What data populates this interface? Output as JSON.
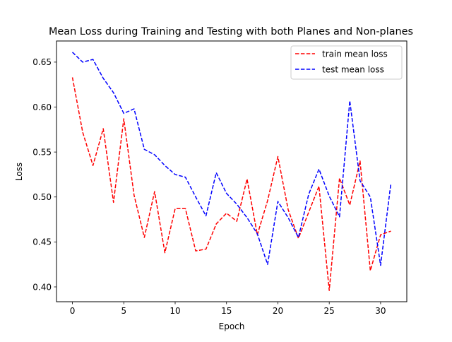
{
  "chart_data": {
    "type": "line",
    "title": "Mean Loss during Training and Testing with both Planes and Non-planes",
    "xlabel": "Epoch",
    "ylabel": "Loss",
    "xlim": [
      -1.55,
      32.55
    ],
    "ylim": [
      0.3835,
      0.6735
    ],
    "x_ticks": [
      0,
      5,
      10,
      15,
      20,
      25,
      30
    ],
    "y_ticks": [
      0.4,
      0.45,
      0.5,
      0.55,
      0.6,
      0.65
    ],
    "x_tick_labels": [
      "0",
      "5",
      "10",
      "15",
      "20",
      "25",
      "30"
    ],
    "y_tick_labels": [
      "0.40",
      "0.45",
      "0.50",
      "0.55",
      "0.60",
      "0.65"
    ],
    "grid": false,
    "legend_position": "top-right",
    "x": [
      0,
      1,
      2,
      3,
      4,
      5,
      6,
      7,
      8,
      9,
      10,
      11,
      12,
      13,
      14,
      15,
      16,
      17,
      18,
      19,
      20,
      21,
      22,
      23,
      24,
      25,
      26,
      27,
      28,
      29,
      30,
      31
    ],
    "series": [
      {
        "name": "train mean loss",
        "color": "#ff0000",
        "line_style": "dashed",
        "values": [
          0.633,
          0.572,
          0.535,
          0.576,
          0.494,
          0.587,
          0.502,
          0.455,
          0.506,
          0.438,
          0.487,
          0.487,
          0.44,
          0.442,
          0.47,
          0.482,
          0.473,
          0.52,
          0.458,
          0.496,
          0.545,
          0.486,
          0.454,
          0.483,
          0.512,
          0.396,
          0.521,
          0.491,
          0.54,
          0.418,
          0.458,
          0.462
        ]
      },
      {
        "name": "test mean loss",
        "color": "#0000ff",
        "line_style": "dashed",
        "values": [
          0.661,
          0.65,
          0.653,
          0.632,
          0.616,
          0.593,
          0.598,
          0.553,
          0.547,
          0.535,
          0.525,
          0.522,
          0.5,
          0.479,
          0.527,
          0.504,
          0.492,
          0.477,
          0.459,
          0.425,
          0.495,
          0.477,
          0.455,
          0.503,
          0.531,
          0.501,
          0.478,
          0.607,
          0.518,
          0.5,
          0.424,
          0.515
        ]
      }
    ]
  }
}
